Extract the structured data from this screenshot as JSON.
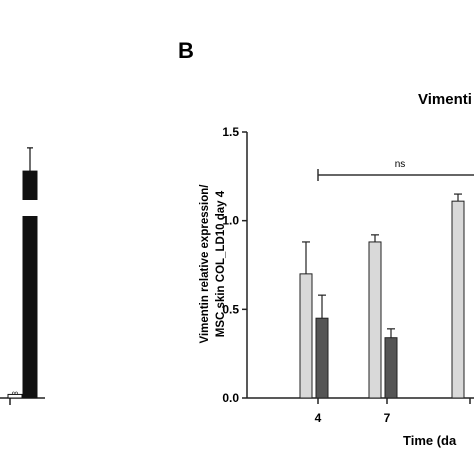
{
  "panel_label": "B",
  "chart_data": [
    {
      "type": "bar",
      "panel": "A",
      "partial": true,
      "categories": [
        ""
      ],
      "series": [
        {
          "values": [
            0.02
          ],
          "error": [
            0.0
          ],
          "color": "#ffffff"
        },
        {
          "values": [
            1.27
          ],
          "error": [
            0.13
          ],
          "color": "#111111"
        }
      ],
      "bar_label": "∞",
      "ylim": [
        0,
        1.5
      ]
    },
    {
      "type": "bar",
      "panel": "B",
      "title": "Vimenti",
      "xlabel": "Time (da",
      "ylabel_line1": "Vimentin relative expression/",
      "ylabel_line2": "MSC skin COL_LD10 day 4",
      "ylim": [
        0,
        1.5
      ],
      "yticks": [
        "0.0",
        "0.5",
        "1.0",
        "1.5"
      ],
      "categories": [
        "4",
        "7",
        ""
      ],
      "series": [
        {
          "color": "#d9d9d9",
          "values": [
            0.7,
            0.88,
            1.11
          ],
          "error": [
            0.18,
            0.04,
            0.04
          ]
        },
        {
          "color": "#555555",
          "values": [
            0.45,
            0.34,
            null
          ],
          "error": [
            0.13,
            0.05,
            null
          ]
        }
      ],
      "annotation": "ns"
    }
  ]
}
